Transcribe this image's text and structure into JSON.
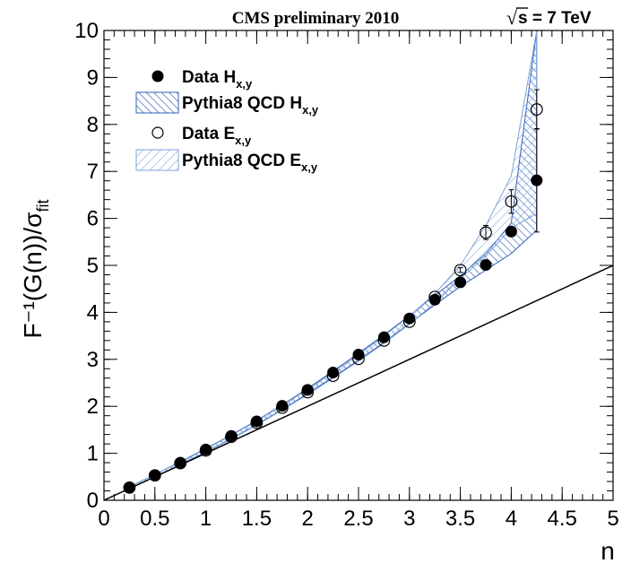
{
  "chart_data": {
    "type": "scatter",
    "title": "CMS preliminary 2010",
    "energy_label": "s = 7 TeV",
    "energy_sqrt_symbol": "√",
    "xlabel": "n",
    "ylabel": "F⁻¹(G(n))/σ",
    "ylabel_sub": "fit",
    "xlim": [
      0,
      5
    ],
    "ylim": [
      0,
      10
    ],
    "x_ticks": [
      "0",
      "0.5",
      "1",
      "1.5",
      "2",
      "2.5",
      "3",
      "3.5",
      "4",
      "4.5",
      "5"
    ],
    "y_ticks": [
      "0",
      "1",
      "2",
      "3",
      "4",
      "5",
      "6",
      "7",
      "8",
      "9",
      "10"
    ],
    "legend_position": "top-left",
    "legend": [
      {
        "label": "Data H",
        "sub": "x,y",
        "marker": "filled-circle"
      },
      {
        "label": "Pythia8 QCD H",
        "sub": "x,y",
        "marker": "hatched-band-dark"
      },
      {
        "label": "Data E",
        "sub": "x,y",
        "marker": "open-circle"
      },
      {
        "label": "Pythia8 QCD E",
        "sub": "x,y",
        "marker": "hatched-band-light"
      }
    ],
    "reference_line": {
      "x": [
        0,
        5
      ],
      "y": [
        0,
        5
      ]
    },
    "series": [
      {
        "name": "Data H",
        "marker": "filled-circle",
        "x": [
          0.25,
          0.5,
          0.75,
          1.0,
          1.25,
          1.5,
          1.75,
          2.0,
          2.25,
          2.5,
          2.75,
          3.0,
          3.25,
          3.5,
          3.75,
          4.0,
          4.25
        ],
        "y": [
          0.27,
          0.53,
          0.8,
          1.08,
          1.37,
          1.68,
          2.01,
          2.35,
          2.72,
          3.1,
          3.47,
          3.87,
          4.27,
          4.64,
          5.01,
          5.72,
          6.81
        ],
        "y_err": [
          0,
          0,
          0,
          0,
          0,
          0,
          0,
          0,
          0,
          0,
          0,
          0,
          0,
          0,
          0.05,
          0.08,
          1.1
        ]
      },
      {
        "name": "Data E",
        "marker": "open-circle",
        "x": [
          0.25,
          0.5,
          0.75,
          1.0,
          1.25,
          1.5,
          1.75,
          2.0,
          2.25,
          2.5,
          2.75,
          3.0,
          3.25,
          3.5,
          3.75,
          4.0,
          4.25
        ],
        "y": [
          0.27,
          0.53,
          0.79,
          1.06,
          1.35,
          1.65,
          1.97,
          2.3,
          2.65,
          3.01,
          3.4,
          3.8,
          4.33,
          4.9,
          5.7,
          6.36,
          8.32
        ],
        "y_err": [
          0,
          0,
          0,
          0,
          0,
          0,
          0,
          0,
          0,
          0,
          0,
          0,
          0,
          0.05,
          0.15,
          0.25,
          0.42
        ]
      },
      {
        "name": "Pythia8 QCD H",
        "type": "band",
        "color": "#2e5fb8",
        "x": [
          0.25,
          0.5,
          0.75,
          1.0,
          1.25,
          1.5,
          1.75,
          2.0,
          2.25,
          2.5,
          2.75,
          3.0,
          3.25,
          3.5,
          3.75,
          4.0,
          4.25
        ],
        "y_low": [
          0.25,
          0.5,
          0.76,
          1.03,
          1.31,
          1.61,
          1.93,
          2.27,
          2.62,
          2.98,
          3.36,
          3.76,
          4.16,
          4.55,
          4.9,
          5.25,
          5.75
        ],
        "y_high": [
          0.29,
          0.55,
          0.82,
          1.1,
          1.39,
          1.7,
          2.03,
          2.38,
          2.75,
          3.13,
          3.52,
          3.93,
          4.36,
          4.78,
          5.25,
          5.9,
          10.0
        ]
      },
      {
        "name": "Pythia8 QCD E",
        "type": "band",
        "color": "#7fa3d8",
        "x": [
          0.25,
          0.5,
          0.75,
          1.0,
          1.25,
          1.5,
          1.75,
          2.0,
          2.25,
          2.5,
          2.75,
          3.0,
          3.25,
          3.5,
          3.75,
          4.0,
          4.25
        ],
        "y_low": [
          0.25,
          0.5,
          0.75,
          1.02,
          1.3,
          1.6,
          1.92,
          2.25,
          2.6,
          2.96,
          3.34,
          3.75,
          4.2,
          4.72,
          5.2,
          5.8,
          6.1
        ],
        "y_high": [
          0.29,
          0.55,
          0.81,
          1.09,
          1.38,
          1.69,
          2.02,
          2.36,
          2.72,
          3.1,
          3.5,
          3.92,
          4.4,
          5.0,
          5.85,
          6.9,
          10.0
        ]
      }
    ]
  }
}
